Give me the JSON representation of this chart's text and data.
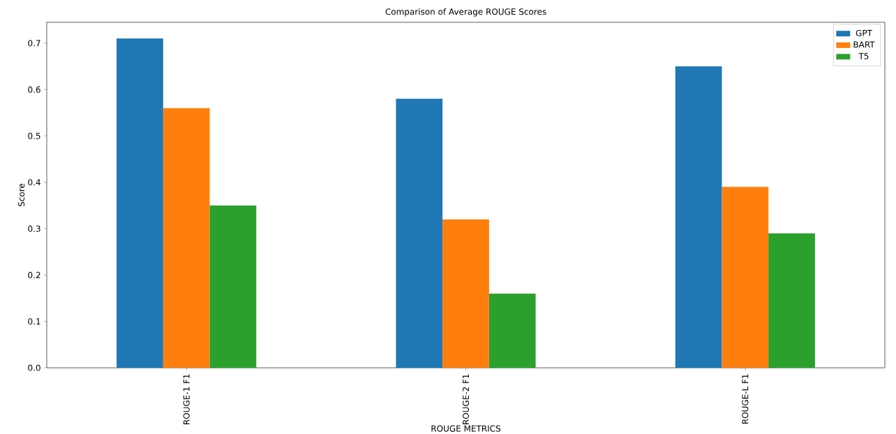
{
  "chart_data": {
    "type": "bar",
    "title": "Comparison of Average ROUGE Scores",
    "xlabel": "ROUGE METRICS",
    "ylabel": "Score",
    "categories": [
      "ROUGE-1 F1",
      "ROUGE-2 F1",
      "ROUGE-L F1"
    ],
    "series": [
      {
        "name": "GPT",
        "color": "#1f77b4",
        "values": [
          0.71,
          0.58,
          0.65
        ]
      },
      {
        "name": "BART",
        "color": "#ff7f0e",
        "values": [
          0.56,
          0.32,
          0.39
        ]
      },
      {
        "name": "T5",
        "color": "#2ca02c",
        "values": [
          0.35,
          0.16,
          0.29
        ]
      }
    ],
    "ylim": [
      0,
      0.745
    ],
    "yticks": [
      {
        "value": 0,
        "label": "0.0"
      },
      0.1,
      0.2,
      0.3,
      0.4,
      0.5,
      0.6,
      0.7
    ],
    "legend": "top right",
    "grid": false
  }
}
